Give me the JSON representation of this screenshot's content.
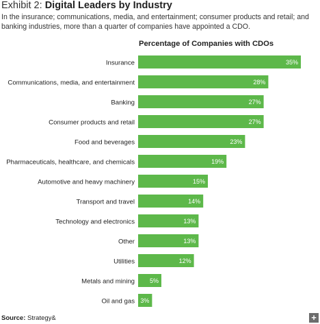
{
  "header": {
    "exhibit_number": "Exhibit 2:",
    "title": "Digital Leaders by Industry",
    "subtitle": "In the insurance; communications, media, and entertainment; consumer products and retail; and banking industries, more than a quarter of companies have appointed a CDO."
  },
  "chart_data": {
    "type": "bar",
    "orientation": "horizontal",
    "title": "Percentage of Companies with CDOs",
    "xlabel": "",
    "ylabel": "",
    "xlim": [
      0,
      35
    ],
    "grid": false,
    "categories": [
      "Insurance",
      "Communications, media, and entertainment",
      "Banking",
      "Consumer products and retail",
      "Food and beverages",
      "Pharmaceuticals, healthcare, and chemicals",
      "Automotive and heavy machinery",
      "Transport and travel",
      "Technology and electronics",
      "Other",
      "Utilities",
      "Metals and mining",
      "Oil and gas"
    ],
    "values": [
      35,
      28,
      27,
      27,
      23,
      19,
      15,
      14,
      13,
      13,
      12,
      5,
      3
    ],
    "value_labels": [
      "35%",
      "28%",
      "27%",
      "27%",
      "23%",
      "19%",
      "15%",
      "14%",
      "13%",
      "13%",
      "12%",
      "5%",
      "3%"
    ],
    "bar_color": "#5db84a",
    "label_color": "#ffffff"
  },
  "footer": {
    "source_label": "Source:",
    "source_text": "Strategy&",
    "expand_icon": "plus-icon",
    "expand_glyph": "+"
  }
}
